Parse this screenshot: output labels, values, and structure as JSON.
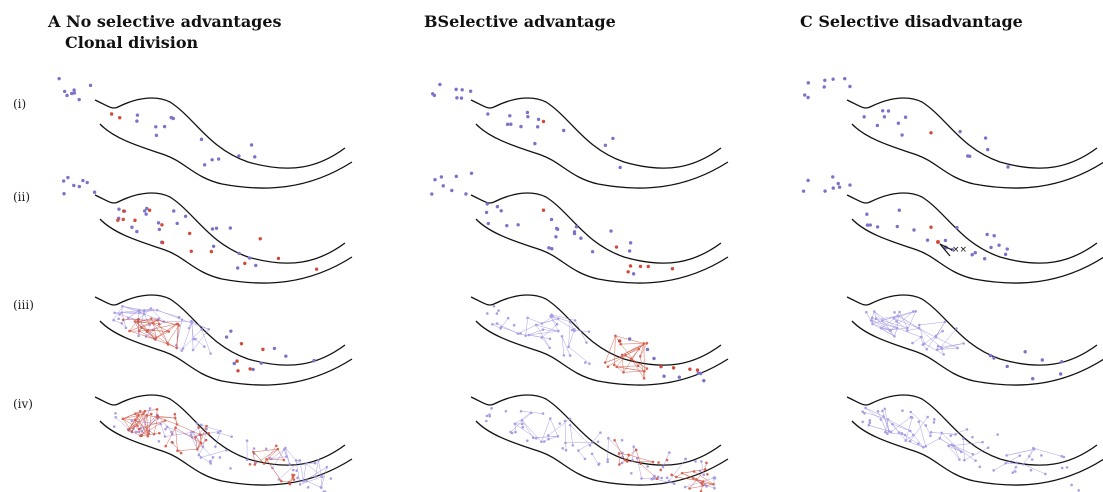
{
  "columns": [
    {
      "letter": "A",
      "title": "No selective advantages",
      "subtitle": "Clonal division"
    },
    {
      "letter": "B",
      "title": "Selective advantage"
    },
    {
      "letter": "C",
      "title": "Selective disadvantage"
    }
  ],
  "rows": [
    "(i)",
    "(ii)",
    "(iii)",
    "(iv)"
  ],
  "colors": {
    "normal_cell": "#7b72c9",
    "mutant_cell": "#d24a37",
    "normal_network": "#9b8ee0",
    "mutant_network": "#cf4a36",
    "outline": "#111111"
  }
}
